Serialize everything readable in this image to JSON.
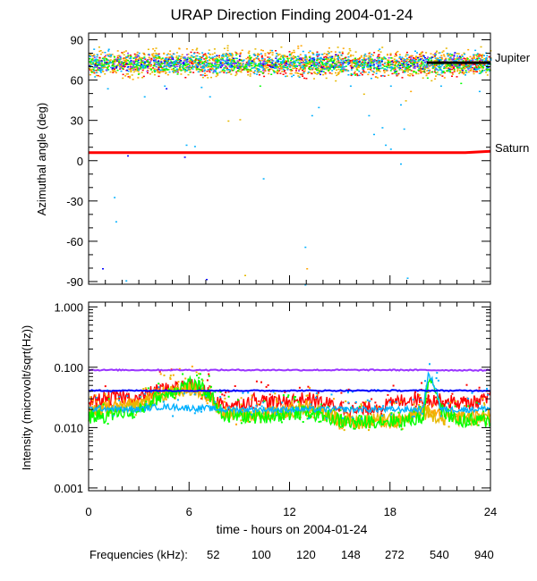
{
  "title": "URAP Direction Finding  2004-01-24",
  "chart_data": [
    {
      "type": "scatter",
      "title": "URAP Direction Finding  2004-01-24",
      "ylabel": "Azimuthal angle (deg)",
      "xlabel": "",
      "xlim": [
        0,
        24
      ],
      "ylim": [
        -92,
        95
      ],
      "yticks": [
        90,
        60,
        30,
        0,
        -30,
        -60,
        -90
      ],
      "ytick_labels": [
        "90",
        "60",
        "30",
        "0",
        "-30",
        "-60",
        "-90"
      ],
      "reference_lines": [
        {
          "name": "Jupiter",
          "color": "#000000",
          "x": [
            20.2,
            24
          ],
          "y": [
            73,
            73
          ]
        },
        {
          "name": "Saturn",
          "color": "#ff0000",
          "x": [
            0,
            22.5,
            24
          ],
          "y": [
            6,
            6,
            7
          ]
        }
      ],
      "series": [
        {
          "name": "52",
          "color": "#ff0000",
          "band_center": 72,
          "band_spread": 4
        },
        {
          "name": "100",
          "color": "#ffa500",
          "band_center": 73,
          "band_spread": 5
        },
        {
          "name": "120",
          "color": "#e6b800",
          "band_center": 73,
          "band_spread": 5
        },
        {
          "name": "148",
          "color": "#00ff00",
          "band_center": 72,
          "band_spread": 3
        },
        {
          "name": "272",
          "color": "#00b0ff",
          "band_center": 73,
          "band_spread": 4
        },
        {
          "name": "540",
          "color": "#0000ff",
          "band_center": 73,
          "band_spread": 3
        },
        {
          "name": "940",
          "color": "#9933ff",
          "band_center": 73,
          "band_spread": 3
        }
      ],
      "outliers": [
        {
          "x": 0.8,
          "y": -80,
          "s": "540"
        },
        {
          "x": 1.5,
          "y": -27,
          "s": "272"
        },
        {
          "x": 1.6,
          "y": -45,
          "s": "272"
        },
        {
          "x": 2.2,
          "y": -89,
          "s": "272"
        },
        {
          "x": 2.3,
          "y": 4,
          "s": "540"
        },
        {
          "x": 5.7,
          "y": 3,
          "s": "540"
        },
        {
          "x": 5.8,
          "y": 12,
          "s": "272"
        },
        {
          "x": 6.3,
          "y": 11,
          "s": "272"
        },
        {
          "x": 7.2,
          "y": 48,
          "s": "272"
        },
        {
          "x": 7.0,
          "y": -88,
          "s": "540"
        },
        {
          "x": 8.3,
          "y": 30,
          "s": "120"
        },
        {
          "x": 9.0,
          "y": 31,
          "s": "120"
        },
        {
          "x": 9.3,
          "y": -85,
          "s": "120"
        },
        {
          "x": 10.4,
          "y": -13,
          "s": "272"
        },
        {
          "x": 10.2,
          "y": 56,
          "s": "148"
        },
        {
          "x": 12.9,
          "y": -64,
          "s": "272"
        },
        {
          "x": 13.0,
          "y": -80,
          "s": "100"
        },
        {
          "x": 12.9,
          "y": -92,
          "s": "272"
        },
        {
          "x": 13.3,
          "y": 34,
          "s": "272"
        },
        {
          "x": 13.7,
          "y": 40,
          "s": "272"
        },
        {
          "x": 16.4,
          "y": 50,
          "s": "120"
        },
        {
          "x": 16.7,
          "y": 34,
          "s": "272"
        },
        {
          "x": 17.0,
          "y": 20,
          "s": "272"
        },
        {
          "x": 17.5,
          "y": 25,
          "s": "272"
        },
        {
          "x": 17.7,
          "y": 12,
          "s": "272"
        },
        {
          "x": 18.0,
          "y": 9,
          "s": "272"
        },
        {
          "x": 18.6,
          "y": -2,
          "s": "272"
        },
        {
          "x": 18.8,
          "y": 24,
          "s": "272"
        },
        {
          "x": 18.6,
          "y": 42,
          "s": "272"
        },
        {
          "x": 18.9,
          "y": 45,
          "s": "120"
        },
        {
          "x": 18.0,
          "y": 56,
          "s": "272"
        },
        {
          "x": 19.2,
          "y": 52,
          "s": "100"
        },
        {
          "x": 4.5,
          "y": 56,
          "s": "272"
        },
        {
          "x": 4.6,
          "y": 54,
          "s": "540"
        },
        {
          "x": 6.7,
          "y": 55,
          "s": "272"
        },
        {
          "x": 1.1,
          "y": 54,
          "s": "272"
        },
        {
          "x": 15.6,
          "y": 56,
          "s": "272"
        },
        {
          "x": 21.0,
          "y": 56,
          "s": "272"
        },
        {
          "x": 22.2,
          "y": 58,
          "s": "148"
        },
        {
          "x": 23.3,
          "y": 52,
          "s": "272"
        },
        {
          "x": 19.0,
          "y": -87,
          "s": "272"
        },
        {
          "x": 3.3,
          "y": 48,
          "s": "272"
        },
        {
          "x": 20.2,
          "y": 62,
          "s": "148"
        },
        {
          "x": 2.6,
          "y": 61,
          "s": "100"
        }
      ]
    },
    {
      "type": "line",
      "title": "",
      "ylabel": "Intensity (microvolt/sqrt(Hz))",
      "xlabel": "time - hours on 2004-01-24",
      "scale": "log",
      "xlim": [
        0,
        24
      ],
      "ylim": [
        0.0009,
        1.2
      ],
      "xticks": [
        0,
        6,
        12,
        18,
        24
      ],
      "xtick_labels": [
        "0",
        "6",
        "12",
        "18",
        "24"
      ],
      "yticks": [
        1.0,
        0.1,
        0.01,
        0.001
      ],
      "ytick_labels": [
        "1.000",
        "0.100",
        "0.010",
        "0.001"
      ],
      "series": [
        {
          "name": "52",
          "color": "#ff0000",
          "x": [
            0,
            1,
            2,
            3,
            4,
            5,
            6,
            7,
            8,
            9,
            10,
            11,
            12,
            13,
            14,
            15,
            16,
            17,
            18,
            19,
            20,
            21,
            22,
            23,
            24
          ],
          "values": [
            0.026,
            0.03,
            0.032,
            0.03,
            0.04,
            0.045,
            0.05,
            0.038,
            0.024,
            0.024,
            0.03,
            0.026,
            0.028,
            0.03,
            0.026,
            0.022,
            0.018,
            0.022,
            0.024,
            0.03,
            0.03,
            0.028,
            0.026,
            0.026,
            0.03
          ]
        },
        {
          "name": "100",
          "color": "#ffa500",
          "x": [
            0,
            1,
            2,
            3,
            4,
            5,
            6,
            7,
            8,
            9,
            10,
            11,
            12,
            13,
            14,
            15,
            16,
            17,
            18,
            19,
            20,
            21,
            22,
            23,
            24
          ],
          "values": [
            0.018,
            0.022,
            0.024,
            0.024,
            0.035,
            0.04,
            0.05,
            0.035,
            0.018,
            0.016,
            0.016,
            0.018,
            0.02,
            0.022,
            0.018,
            0.013,
            0.012,
            0.013,
            0.013,
            0.014,
            0.02,
            0.016,
            0.015,
            0.015,
            0.015
          ]
        },
        {
          "name": "120",
          "color": "#e6b800",
          "x": [
            0,
            1,
            2,
            3,
            4,
            5,
            6,
            7,
            8,
            9,
            10,
            11,
            12,
            13,
            14,
            15,
            16,
            17,
            18,
            19,
            20,
            21,
            22,
            23,
            24
          ],
          "values": [
            0.017,
            0.02,
            0.022,
            0.022,
            0.032,
            0.038,
            0.045,
            0.032,
            0.017,
            0.016,
            0.016,
            0.017,
            0.018,
            0.02,
            0.017,
            0.013,
            0.012,
            0.013,
            0.013,
            0.014,
            0.018,
            0.015,
            0.014,
            0.014,
            0.014
          ]
        },
        {
          "name": "148",
          "color": "#00ff00",
          "x": [
            0,
            1,
            2,
            3,
            4,
            5,
            6,
            7,
            8,
            9,
            10,
            11,
            12,
            13,
            14,
            15,
            16,
            17,
            18,
            19,
            20,
            20.4,
            21,
            22,
            23,
            24
          ],
          "values": [
            0.015,
            0.016,
            0.018,
            0.018,
            0.03,
            0.04,
            0.055,
            0.04,
            0.016,
            0.016,
            0.015,
            0.016,
            0.017,
            0.018,
            0.016,
            0.013,
            0.012,
            0.013,
            0.013,
            0.013,
            0.015,
            0.07,
            0.02,
            0.013,
            0.013,
            0.013
          ]
        },
        {
          "name": "272",
          "color": "#00b0ff",
          "x": [
            0,
            1,
            2,
            3,
            4,
            5,
            6,
            7,
            8,
            9,
            10,
            11,
            12,
            13,
            14,
            15,
            16,
            17,
            18,
            19,
            20,
            20.3,
            20.8,
            21,
            22,
            23,
            24
          ],
          "values": [
            0.02,
            0.021,
            0.02,
            0.02,
            0.022,
            0.022,
            0.021,
            0.021,
            0.02,
            0.02,
            0.02,
            0.02,
            0.02,
            0.02,
            0.02,
            0.02,
            0.02,
            0.02,
            0.02,
            0.02,
            0.02,
            0.075,
            0.04,
            0.02,
            0.02,
            0.02,
            0.021
          ]
        },
        {
          "name": "540",
          "color": "#0000ff",
          "x": [
            0,
            6,
            12,
            18,
            24
          ],
          "values": [
            0.041,
            0.041,
            0.041,
            0.041,
            0.041
          ]
        },
        {
          "name": "940",
          "color": "#9933ff",
          "x": [
            0,
            6,
            12,
            18,
            24
          ],
          "values": [
            0.09,
            0.09,
            0.09,
            0.09,
            0.089
          ]
        }
      ]
    }
  ],
  "legend": {
    "label": "Frequencies (kHz):",
    "items": [
      {
        "text": "52",
        "color": "#ff0000"
      },
      {
        "text": "100",
        "color": "#ffa500"
      },
      {
        "text": "120",
        "color": "#e6b800"
      },
      {
        "text": "148",
        "color": "#00ff00"
      },
      {
        "text": "272",
        "color": "#00b0ff"
      },
      {
        "text": "540",
        "color": "#0000ff"
      },
      {
        "text": "940",
        "color": "#9933ff"
      }
    ]
  }
}
